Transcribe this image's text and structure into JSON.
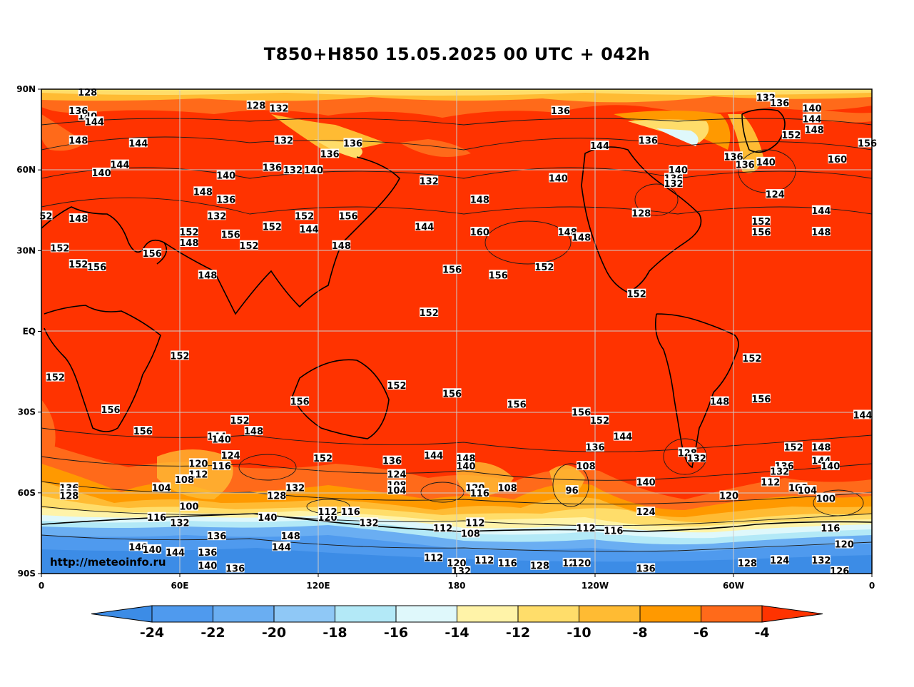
{
  "title": "T850+H850 15.05.2025 00 UTC + 042h",
  "watermark": "http://meteoinfo.ru",
  "axes": {
    "y_ticks": [
      "90N",
      "60N",
      "30N",
      "EQ",
      "30S",
      "60S",
      "90S"
    ],
    "x_ticks": [
      "0",
      "60E",
      "120E",
      "180",
      "120W",
      "60W",
      "0"
    ]
  },
  "colorbar": {
    "labels": [
      "-24",
      "-22",
      "-20",
      "-18",
      "-16",
      "-14",
      "-12",
      "-10",
      "-8",
      "-6",
      "-4"
    ],
    "colors": [
      "#3c8ce6",
      "#4f9aee",
      "#6aaef2",
      "#8fc8f6",
      "#b3e9f7",
      "#dff8fb",
      "#fff3a8",
      "#ffdd6a",
      "#ffbb33",
      "#ff9900",
      "#ff6a1a",
      "#ff3300"
    ]
  },
  "contour_labels": [
    {
      "t": "128",
      "lon": 20,
      "lat": 89
    },
    {
      "t": "128",
      "lon": 93,
      "lat": 84
    },
    {
      "t": "132",
      "lon": 103,
      "lat": 83
    },
    {
      "t": "132",
      "lon": 314,
      "lat": 87
    },
    {
      "t": "136",
      "lon": 320,
      "lat": 85
    },
    {
      "t": "140",
      "lon": 334,
      "lat": 83
    },
    {
      "t": "140",
      "lon": 20,
      "lat": 80
    },
    {
      "t": "136",
      "lon": 16,
      "lat": 82
    },
    {
      "t": "144",
      "lon": 23,
      "lat": 78
    },
    {
      "t": "136",
      "lon": 225,
      "lat": 82
    },
    {
      "t": "148",
      "lon": 16,
      "lat": 71
    },
    {
      "t": "144",
      "lon": 42,
      "lat": 70
    },
    {
      "t": "152",
      "lon": 325,
      "lat": 73
    },
    {
      "t": "148",
      "lon": 335,
      "lat": 75
    },
    {
      "t": "144",
      "lon": 334,
      "lat": 79
    },
    {
      "t": "156",
      "lon": 358,
      "lat": 70
    },
    {
      "t": "160",
      "lon": 345,
      "lat": 64
    },
    {
      "t": "132",
      "lon": 105,
      "lat": 71
    },
    {
      "t": "136",
      "lon": 125,
      "lat": 66
    },
    {
      "t": "136",
      "lon": 135,
      "lat": 70
    },
    {
      "t": "144",
      "lon": 242,
      "lat": 69
    },
    {
      "t": "136",
      "lon": 263,
      "lat": 71
    },
    {
      "t": "140",
      "lon": 276,
      "lat": 60
    },
    {
      "t": "136",
      "lon": 274,
      "lat": 57
    },
    {
      "t": "132",
      "lon": 274,
      "lat": 55
    },
    {
      "t": "136",
      "lon": 300,
      "lat": 65
    },
    {
      "t": "136",
      "lon": 305,
      "lat": 62
    },
    {
      "t": "140",
      "lon": 314,
      "lat": 63
    },
    {
      "t": "124",
      "lon": 318,
      "lat": 51
    },
    {
      "t": "144",
      "lon": 338,
      "lat": 45
    },
    {
      "t": "148",
      "lon": 338,
      "lat": 37
    },
    {
      "t": "152",
      "lon": 312,
      "lat": 41
    },
    {
      "t": "156",
      "lon": 312,
      "lat": 37
    },
    {
      "t": "144",
      "lon": 34,
      "lat": 62
    },
    {
      "t": "140",
      "lon": 26,
      "lat": 59
    },
    {
      "t": "148",
      "lon": 70,
      "lat": 52
    },
    {
      "t": "140",
      "lon": 80,
      "lat": 58
    },
    {
      "t": "136",
      "lon": 80,
      "lat": 49
    },
    {
      "t": "132",
      "lon": 76,
      "lat": 43
    },
    {
      "t": "132",
      "lon": 109,
      "lat": 60
    },
    {
      "t": "136",
      "lon": 100,
      "lat": 61
    },
    {
      "t": "140",
      "lon": 118,
      "lat": 60
    },
    {
      "t": "152",
      "lon": 114,
      "lat": 43
    },
    {
      "t": "156",
      "lon": 133,
      "lat": 43
    },
    {
      "t": "144",
      "lon": 166,
      "lat": 39
    },
    {
      "t": "132",
      "lon": 168,
      "lat": 56
    },
    {
      "t": "148",
      "lon": 190,
      "lat": 49
    },
    {
      "t": "160",
      "lon": 190,
      "lat": 37
    },
    {
      "t": "140",
      "lon": 224,
      "lat": 57
    },
    {
      "t": "148",
      "lon": 228,
      "lat": 37
    },
    {
      "t": "148",
      "lon": 234,
      "lat": 35
    },
    {
      "t": "128",
      "lon": 260,
      "lat": 44
    },
    {
      "t": "152",
      "lon": 218,
      "lat": 24
    },
    {
      "t": "156",
      "lon": 198,
      "lat": 21
    },
    {
      "t": "156",
      "lon": 178,
      "lat": 23
    },
    {
      "t": "152",
      "lon": 258,
      "lat": 14
    },
    {
      "t": "152",
      "lon": 168,
      "lat": 7
    },
    {
      "t": "152",
      "lon": 8,
      "lat": 31
    },
    {
      "t": "148",
      "lon": 16,
      "lat": 42
    },
    {
      "t": "52",
      "lon": 2,
      "lat": 43
    },
    {
      "t": "152",
      "lon": 64,
      "lat": 37
    },
    {
      "t": "148",
      "lon": 64,
      "lat": 33
    },
    {
      "t": "156",
      "lon": 82,
      "lat": 36
    },
    {
      "t": "152",
      "lon": 90,
      "lat": 32
    },
    {
      "t": "152",
      "lon": 100,
      "lat": 39
    },
    {
      "t": "156",
      "lon": 48,
      "lat": 29
    },
    {
      "t": "152",
      "lon": 16,
      "lat": 25
    },
    {
      "t": "156",
      "lon": 24,
      "lat": 24
    },
    {
      "t": "148",
      "lon": 72,
      "lat": 21
    },
    {
      "t": "144",
      "lon": 116,
      "lat": 38
    },
    {
      "t": "148",
      "lon": 130,
      "lat": 32
    },
    {
      "t": "152",
      "lon": 60,
      "lat": -9
    },
    {
      "t": "152",
      "lon": 6,
      "lat": -17
    },
    {
      "t": "156",
      "lon": 30,
      "lat": -29
    },
    {
      "t": "156",
      "lon": 112,
      "lat": -26
    },
    {
      "t": "152",
      "lon": 154,
      "lat": -20
    },
    {
      "t": "156",
      "lon": 178,
      "lat": -23
    },
    {
      "t": "156",
      "lon": 206,
      "lat": -27
    },
    {
      "t": "156",
      "lon": 234,
      "lat": -30
    },
    {
      "t": "152",
      "lon": 242,
      "lat": -33
    },
    {
      "t": "144",
      "lon": 252,
      "lat": -39
    },
    {
      "t": "152",
      "lon": 308,
      "lat": -10
    },
    {
      "t": "156",
      "lon": 312,
      "lat": -25
    },
    {
      "t": "148",
      "lon": 294,
      "lat": -26
    },
    {
      "t": "144",
      "lon": 356,
      "lat": -31
    },
    {
      "t": "148",
      "lon": 338,
      "lat": -43
    },
    {
      "t": "152",
      "lon": 326,
      "lat": -43
    },
    {
      "t": "148",
      "lon": 92,
      "lat": -37
    },
    {
      "t": "152",
      "lon": 86,
      "lat": -33
    },
    {
      "t": "156",
      "lon": 44,
      "lat": -37
    },
    {
      "t": "144",
      "lon": 76,
      "lat": -39
    },
    {
      "t": "140",
      "lon": 78,
      "lat": -40
    },
    {
      "t": "124",
      "lon": 82,
      "lat": -46
    },
    {
      "t": "120",
      "lon": 68,
      "lat": -49
    },
    {
      "t": "116",
      "lon": 78,
      "lat": -50
    },
    {
      "t": "112",
      "lon": 68,
      "lat": -53
    },
    {
      "t": "108",
      "lon": 62,
      "lat": -55
    },
    {
      "t": "104",
      "lon": 52,
      "lat": -58
    },
    {
      "t": "152",
      "lon": 122,
      "lat": -47
    },
    {
      "t": "136",
      "lon": 152,
      "lat": -48
    },
    {
      "t": "144",
      "lon": 170,
      "lat": -46
    },
    {
      "t": "148",
      "lon": 184,
      "lat": -47
    },
    {
      "t": "140",
      "lon": 184,
      "lat": -50
    },
    {
      "t": "124",
      "lon": 154,
      "lat": -53
    },
    {
      "t": "108",
      "lon": 154,
      "lat": -57
    },
    {
      "t": "104",
      "lon": 154,
      "lat": -59
    },
    {
      "t": "120",
      "lon": 188,
      "lat": -58
    },
    {
      "t": "116",
      "lon": 190,
      "lat": -60
    },
    {
      "t": "108",
      "lon": 202,
      "lat": -58
    },
    {
      "t": "136",
      "lon": 240,
      "lat": -43
    },
    {
      "t": "108",
      "lon": 236,
      "lat": -50
    },
    {
      "t": "96",
      "lon": 230,
      "lat": -59
    },
    {
      "t": "140",
      "lon": 262,
      "lat": -56
    },
    {
      "t": "124",
      "lon": 262,
      "lat": -67
    },
    {
      "t": "128",
      "lon": 280,
      "lat": -45
    },
    {
      "t": "132",
      "lon": 284,
      "lat": -47
    },
    {
      "t": "144",
      "lon": 338,
      "lat": -48
    },
    {
      "t": "140",
      "lon": 342,
      "lat": -50
    },
    {
      "t": "136",
      "lon": 322,
      "lat": -50
    },
    {
      "t": "132",
      "lon": 320,
      "lat": -52
    },
    {
      "t": "112",
      "lon": 316,
      "lat": -56
    },
    {
      "t": "108",
      "lon": 328,
      "lat": -58
    },
    {
      "t": "104",
      "lon": 332,
      "lat": -59
    },
    {
      "t": "100",
      "lon": 340,
      "lat": -62
    },
    {
      "t": "120",
      "lon": 298,
      "lat": -61
    },
    {
      "t": "136",
      "lon": 12,
      "lat": -58
    },
    {
      "t": "132",
      "lon": 12,
      "lat": -60
    },
    {
      "t": "128",
      "lon": 12,
      "lat": -61
    },
    {
      "t": "100",
      "lon": 64,
      "lat": -65
    },
    {
      "t": "128",
      "lon": 102,
      "lat": -61
    },
    {
      "t": "132",
      "lon": 110,
      "lat": -58
    },
    {
      "t": "116",
      "lon": 50,
      "lat": -69
    },
    {
      "t": "132",
      "lon": 60,
      "lat": -71
    },
    {
      "t": "140",
      "lon": 98,
      "lat": -69
    },
    {
      "t": "120",
      "lon": 124,
      "lat": -69
    },
    {
      "t": "112",
      "lon": 124,
      "lat": -67
    },
    {
      "t": "116",
      "lon": 134,
      "lat": -67
    },
    {
      "t": "132",
      "lon": 142,
      "lat": -71
    },
    {
      "t": "112",
      "lon": 174,
      "lat": -73
    },
    {
      "t": "112",
      "lon": 188,
      "lat": -71
    },
    {
      "t": "108",
      "lon": 186,
      "lat": -75
    },
    {
      "t": "112",
      "lon": 236,
      "lat": -73
    },
    {
      "t": "116",
      "lon": 248,
      "lat": -74
    },
    {
      "t": "136",
      "lon": 76,
      "lat": -76
    },
    {
      "t": "148",
      "lon": 108,
      "lat": -76
    },
    {
      "t": "144",
      "lon": 104,
      "lat": -80
    },
    {
      "t": "140",
      "lon": 42,
      "lat": -80
    },
    {
      "t": "140",
      "lon": 48,
      "lat": -81
    },
    {
      "t": "144",
      "lon": 58,
      "lat": -82
    },
    {
      "t": "136",
      "lon": 72,
      "lat": -82
    },
    {
      "t": "140",
      "lon": 72,
      "lat": -87
    },
    {
      "t": "136",
      "lon": 84,
      "lat": -88
    },
    {
      "t": "112",
      "lon": 170,
      "lat": -84
    },
    {
      "t": "120",
      "lon": 180,
      "lat": -86
    },
    {
      "t": "132",
      "lon": 182,
      "lat": -89
    },
    {
      "t": "112",
      "lon": 192,
      "lat": -85
    },
    {
      "t": "116",
      "lon": 202,
      "lat": -86
    },
    {
      "t": "128",
      "lon": 216,
      "lat": -87
    },
    {
      "t": "124",
      "lon": 230,
      "lat": -86
    },
    {
      "t": "120",
      "lon": 234,
      "lat": -86
    },
    {
      "t": "136",
      "lon": 262,
      "lat": -88
    },
    {
      "t": "128",
      "lon": 306,
      "lat": -86
    },
    {
      "t": "124",
      "lon": 320,
      "lat": -85
    },
    {
      "t": "132",
      "lon": 338,
      "lat": -85
    },
    {
      "t": "120",
      "lon": 348,
      "lat": -79
    },
    {
      "t": "116",
      "lon": 342,
      "lat": -73
    },
    {
      "t": "126",
      "lon": 346,
      "lat": -89
    }
  ]
}
